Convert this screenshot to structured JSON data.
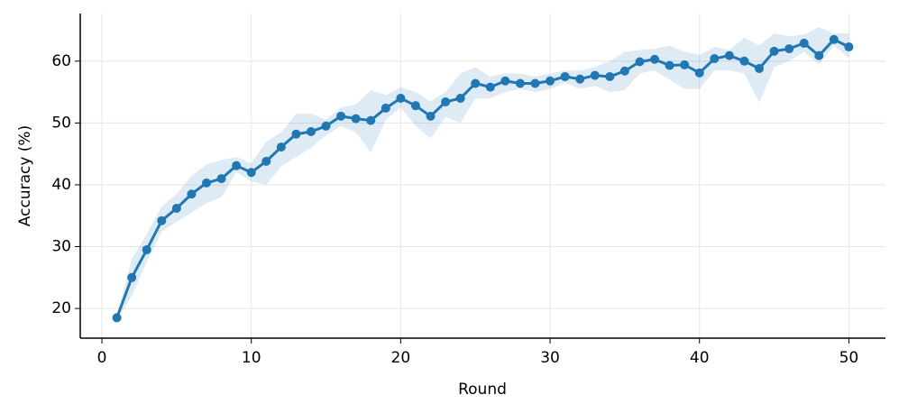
{
  "chart_data": {
    "type": "line",
    "xlabel": "Round",
    "ylabel": "Accuracy (%)",
    "x": [
      1,
      2,
      3,
      4,
      5,
      6,
      7,
      8,
      9,
      10,
      11,
      12,
      13,
      14,
      15,
      16,
      17,
      18,
      19,
      20,
      21,
      22,
      23,
      24,
      25,
      26,
      27,
      28,
      29,
      30,
      31,
      32,
      33,
      34,
      35,
      36,
      37,
      38,
      39,
      40,
      41,
      42,
      43,
      44,
      45,
      46,
      47,
      48,
      49,
      50
    ],
    "series": [
      {
        "color": "#1f77b4",
        "values": [
          18.5,
          25.0,
          29.5,
          34.2,
          36.2,
          38.5,
          40.3,
          41.0,
          43.1,
          42.0,
          43.8,
          46.1,
          48.2,
          48.6,
          49.5,
          51.1,
          50.7,
          50.4,
          52.4,
          54.0,
          52.8,
          51.1,
          53.4,
          54.0,
          56.4,
          55.8,
          56.8,
          56.4,
          56.4,
          56.8,
          57.5,
          57.1,
          57.7,
          57.5,
          58.4,
          59.9,
          60.3,
          59.3,
          59.4,
          58.1,
          60.4,
          60.9,
          60.0,
          58.8,
          61.6,
          62.0,
          62.9,
          60.9,
          63.5,
          62.3
        ],
        "upper": [
          18.8,
          28,
          32,
          36.5,
          38.5,
          41.5,
          43.3,
          44,
          44.5,
          43.5,
          47,
          48.5,
          51.5,
          51.5,
          50.5,
          52.5,
          53,
          55.3,
          54.5,
          55.8,
          55,
          53.5,
          55,
          58,
          59,
          57.5,
          58,
          58,
          57.5,
          58,
          58.5,
          58.5,
          59,
          60,
          61.5,
          61.8,
          62,
          62.5,
          61.5,
          61,
          62.3,
          61.8,
          63.8,
          62.5,
          64.5,
          64,
          64.3,
          65.5,
          64.5,
          64.5
        ],
        "lower": [
          18.2,
          22,
          27.5,
          32.5,
          34,
          35.5,
          37,
          38,
          42,
          40.5,
          40,
          43,
          44.5,
          46,
          48,
          49.5,
          48.5,
          45.2,
          50.5,
          52.5,
          49.5,
          47.5,
          51,
          50,
          54,
          54,
          55,
          55.5,
          55,
          55.5,
          56.5,
          55.5,
          56,
          55,
          55.3,
          58,
          58.5,
          57,
          55.5,
          55.5,
          58.5,
          58.5,
          58,
          53.3,
          59,
          60,
          61.5,
          59.5,
          62.5,
          60.5
        ]
      }
    ],
    "xlim": [
      -1.45,
      52.45
    ],
    "ylim": [
      15.2,
      67.7
    ],
    "xticks": [
      0,
      10,
      20,
      30,
      40,
      50
    ],
    "yticks": [
      20,
      30,
      40,
      50,
      60
    ],
    "grid": true
  }
}
